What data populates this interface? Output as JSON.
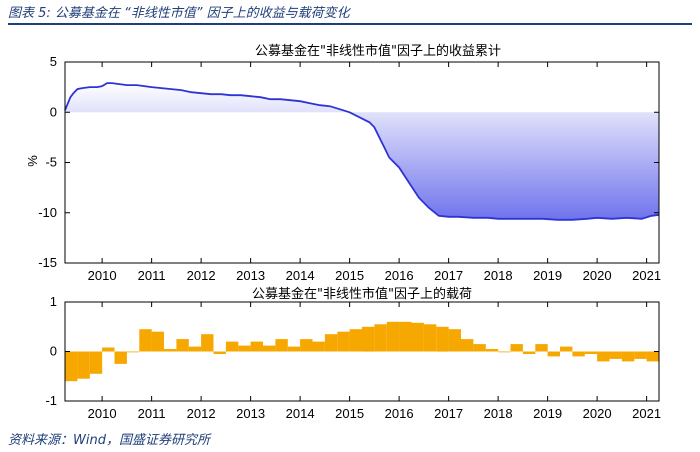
{
  "caption": "图表 5:  公募基金在 “非线性市值” 因子上的收益与载荷变化",
  "source": "资料来源：Wind，国盛证券研究所",
  "colors": {
    "area_top": "#ffffff",
    "area_bottom": "#6f73ec",
    "line": "#2e33d6",
    "bar": "#f7a800",
    "accent": "#1f3f7a"
  },
  "chart_data": [
    {
      "type": "area",
      "title": "公募基金在\"非线性市值\"因子上的收益累计",
      "ylabel": "%",
      "xlabel": "",
      "xlim": [
        2009.25,
        2021.25
      ],
      "ylim": [
        -15,
        5
      ],
      "x_ticks": [
        "2010",
        "2011",
        "2012",
        "2013",
        "2014",
        "2015",
        "2016",
        "2017",
        "2018",
        "2019",
        "2020",
        "2021"
      ],
      "y_ticks": [
        "5",
        "0",
        "-5",
        "-10",
        "-15"
      ],
      "grid": false,
      "x": [
        2009.25,
        2009.3,
        2009.36,
        2009.42,
        2009.5,
        2009.6,
        2009.75,
        2009.9,
        2010.0,
        2010.1,
        2010.2,
        2010.35,
        2010.5,
        2010.7,
        2010.85,
        2011.0,
        2011.2,
        2011.4,
        2011.6,
        2011.8,
        2012.0,
        2012.2,
        2012.4,
        2012.6,
        2012.8,
        2013.0,
        2013.2,
        2013.4,
        2013.6,
        2013.8,
        2014.0,
        2014.2,
        2014.4,
        2014.6,
        2014.8,
        2015.0,
        2015.2,
        2015.4,
        2015.5,
        2015.6,
        2015.7,
        2015.8,
        2016.0,
        2016.2,
        2016.4,
        2016.6,
        2016.8,
        2017.0,
        2017.2,
        2017.5,
        2017.8,
        2018.0,
        2018.3,
        2018.6,
        2018.9,
        2019.2,
        2019.5,
        2019.8,
        2020.0,
        2020.3,
        2020.6,
        2020.9,
        2021.1,
        2021.25
      ],
      "values": [
        0.2,
        0.8,
        1.5,
        1.9,
        2.3,
        2.4,
        2.5,
        2.5,
        2.6,
        2.9,
        2.9,
        2.8,
        2.7,
        2.7,
        2.6,
        2.5,
        2.4,
        2.3,
        2.2,
        2.0,
        1.9,
        1.8,
        1.8,
        1.7,
        1.7,
        1.6,
        1.5,
        1.3,
        1.3,
        1.2,
        1.1,
        0.9,
        0.7,
        0.6,
        0.3,
        0.0,
        -0.5,
        -1.0,
        -1.5,
        -2.5,
        -3.5,
        -4.5,
        -5.5,
        -7.0,
        -8.5,
        -9.5,
        -10.3,
        -10.4,
        -10.4,
        -10.5,
        -10.5,
        -10.6,
        -10.6,
        -10.6,
        -10.6,
        -10.7,
        -10.7,
        -10.6,
        -10.5,
        -10.6,
        -10.5,
        -10.6,
        -10.3,
        -10.2
      ]
    },
    {
      "type": "bar",
      "title": "公募基金在\"非线性市值\"因子上的载荷",
      "ylabel": "",
      "xlabel": "",
      "xlim": [
        2009.25,
        2021.25
      ],
      "ylim": [
        -1,
        1
      ],
      "x_ticks": [
        "2010",
        "2011",
        "2012",
        "2013",
        "2014",
        "2015",
        "2016",
        "2017",
        "2018",
        "2019",
        "2020",
        "2021"
      ],
      "y_ticks": [
        "1",
        "0",
        "-1"
      ],
      "grid": false,
      "x": [
        2009.25,
        2009.5,
        2009.75,
        2010.0,
        2010.25,
        2010.5,
        2010.75,
        2011.0,
        2011.25,
        2011.5,
        2011.75,
        2012.0,
        2012.25,
        2012.5,
        2012.75,
        2013.0,
        2013.25,
        2013.5,
        2013.75,
        2014.0,
        2014.25,
        2014.5,
        2014.75,
        2015.0,
        2015.25,
        2015.5,
        2015.75,
        2016.0,
        2016.25,
        2016.5,
        2016.75,
        2017.0,
        2017.25,
        2017.5,
        2017.75,
        2018.0,
        2018.25,
        2018.5,
        2018.75,
        2019.0,
        2019.25,
        2019.5,
        2019.75,
        2020.0,
        2020.25,
        2020.5,
        2020.75,
        2021.0
      ],
      "values": [
        -0.6,
        -0.55,
        -0.45,
        0.08,
        -0.25,
        0.0,
        0.45,
        0.4,
        0.05,
        0.25,
        0.1,
        0.35,
        -0.05,
        0.2,
        0.12,
        0.2,
        0.12,
        0.25,
        0.1,
        0.25,
        0.2,
        0.35,
        0.4,
        0.45,
        0.5,
        0.55,
        0.6,
        0.6,
        0.58,
        0.55,
        0.5,
        0.45,
        0.25,
        0.15,
        0.05,
        0.0,
        0.15,
        -0.05,
        0.15,
        -0.1,
        0.1,
        -0.1,
        -0.05,
        -0.2,
        -0.15,
        -0.2,
        -0.15,
        -0.2
      ]
    }
  ]
}
